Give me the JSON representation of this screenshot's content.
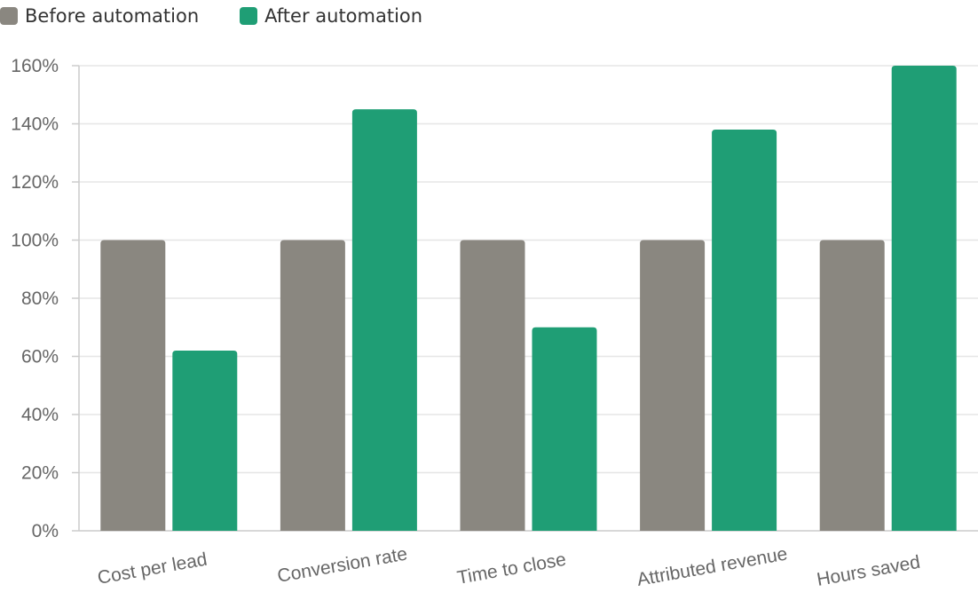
{
  "legend": {
    "items": [
      {
        "label": "Before automation",
        "color": "#8a8780"
      },
      {
        "label": "After automation",
        "color": "#1f9e75"
      }
    ]
  },
  "colors": {
    "before": "#8a8780",
    "after": "#1f9e75",
    "grid": "#e6e6e6",
    "axis": "#cccccc",
    "tick_text": "#666666"
  },
  "chart_data": {
    "type": "bar",
    "categories": [
      "Cost per lead",
      "Conversion rate",
      "Time to close",
      "Attributed revenue",
      "Hours saved"
    ],
    "series": [
      {
        "name": "Before automation",
        "values": [
          100,
          100,
          100,
          100,
          100
        ]
      },
      {
        "name": "After automation",
        "values": [
          62,
          145,
          70,
          138,
          160
        ]
      }
    ],
    "y_ticks": [
      "0%",
      "20%",
      "40%",
      "60%",
      "80%",
      "100%",
      "120%",
      "140%",
      "160%"
    ],
    "ylim": [
      0,
      160
    ],
    "y_unit": "%",
    "grid": true,
    "legend_position": "top-left",
    "title": "",
    "xlabel": "",
    "ylabel": ""
  }
}
